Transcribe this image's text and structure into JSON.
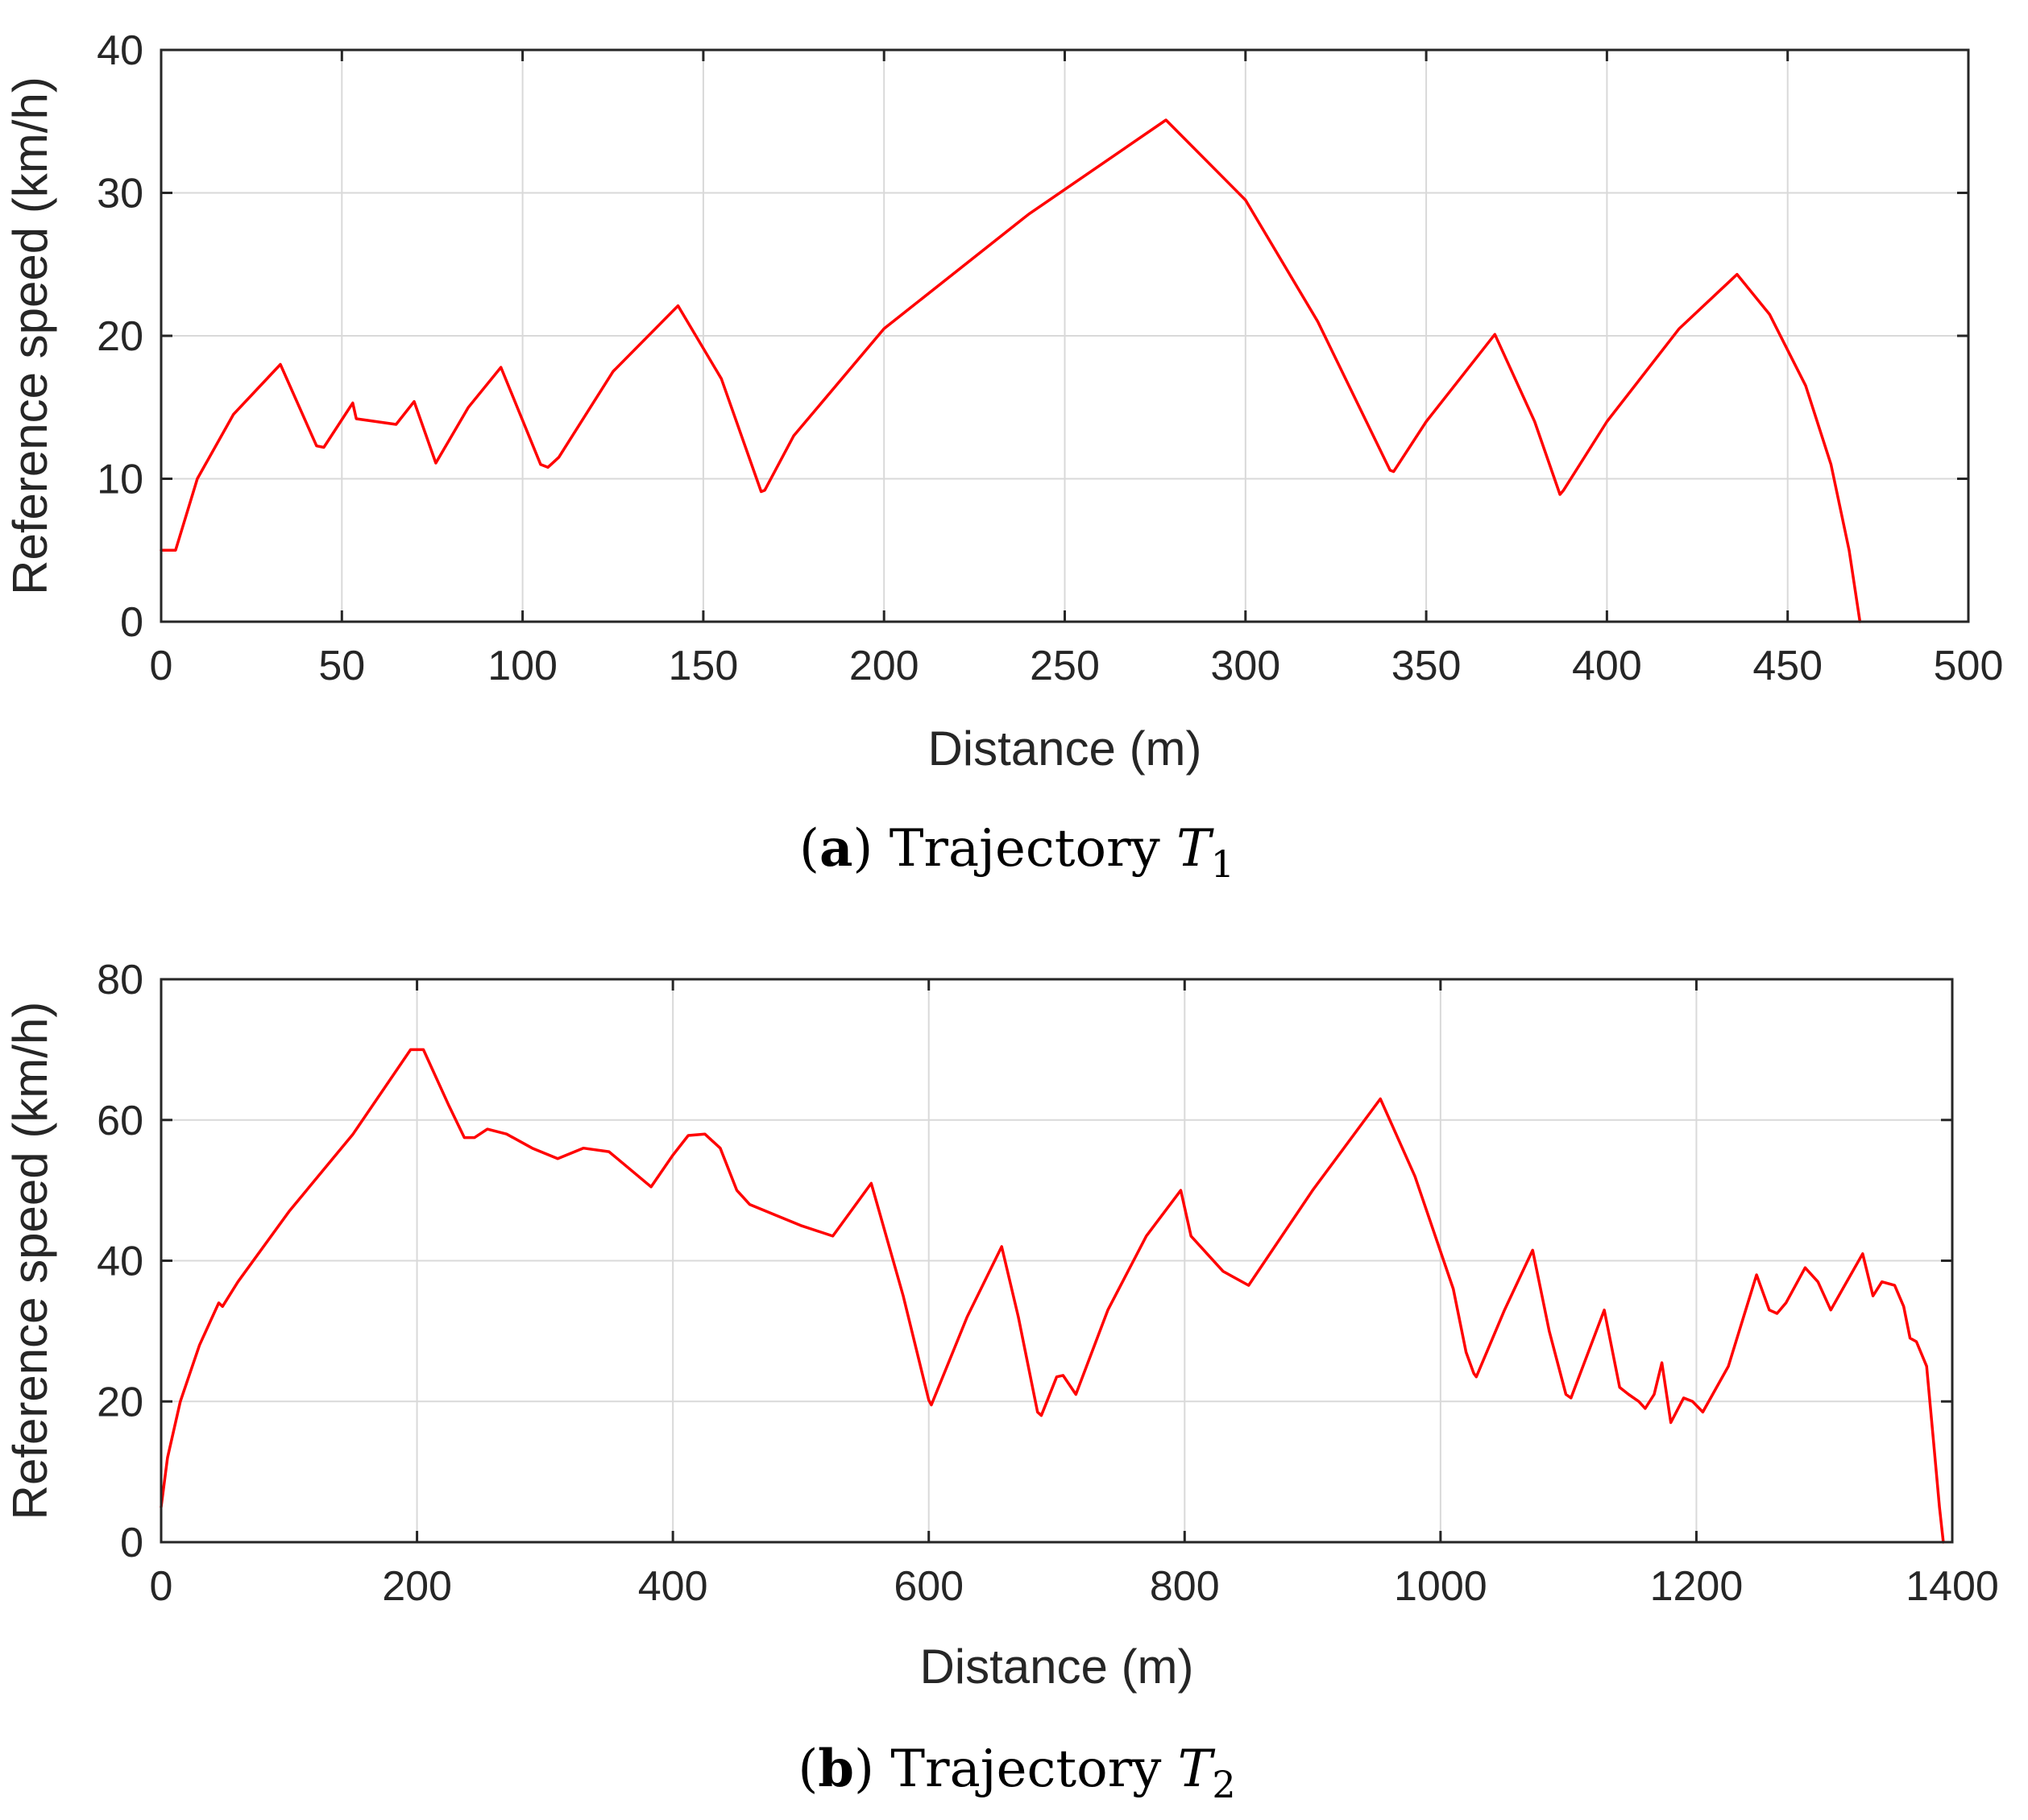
{
  "colors": {
    "line": "#ff0000",
    "grid": "#d9d9d9",
    "axis": "#262626"
  },
  "chart_data": [
    {
      "type": "line",
      "xlabel": "Distance (m)",
      "ylabel": "Reference speed (km/h)",
      "xlim": [
        0,
        500
      ],
      "ylim": [
        0,
        40
      ],
      "xticks": [
        0,
        50,
        100,
        150,
        200,
        250,
        300,
        350,
        400,
        450,
        500
      ],
      "yticks": [
        0,
        10,
        20,
        30,
        40
      ],
      "xtick_labels": [
        "0",
        "50",
        "100",
        "150",
        "200",
        "250",
        "300",
        "350",
        "400",
        "450",
        "500"
      ],
      "ytick_labels": [
        "0",
        "10",
        "20",
        "30",
        "40"
      ],
      "grid": true,
      "caption": {
        "label": "a",
        "text": "Trajectory",
        "symbol": "T",
        "subscript": "1"
      },
      "series": [
        {
          "name": "Reference speed",
          "color": "#ff0000",
          "x": [
            0,
            4,
            10,
            20,
            33,
            43,
            45,
            53,
            54,
            65,
            70,
            76,
            85,
            94,
            105,
            107,
            110,
            125,
            143,
            155,
            166,
            167,
            175,
            200,
            240,
            278,
            300,
            320,
            340,
            341,
            350,
            369,
            380,
            387,
            388,
            400,
            420,
            436,
            445,
            455,
            462,
            467,
            470
          ],
          "values": [
            5,
            5,
            10,
            14.5,
            18,
            12.3,
            12.2,
            15.3,
            14.2,
            13.8,
            15.4,
            11.1,
            15,
            17.8,
            11,
            10.8,
            11.5,
            17.5,
            22.1,
            17,
            9.1,
            9.2,
            13,
            20.5,
            28.5,
            35.1,
            29.5,
            21,
            10.6,
            10.5,
            14,
            20.1,
            14,
            8.9,
            9.2,
            14,
            20.5,
            24.3,
            21.5,
            16.5,
            11,
            5,
            0
          ]
        }
      ]
    },
    {
      "type": "line",
      "xlabel": "Distance (m)",
      "ylabel": "Reference speed (km/h)",
      "xlim": [
        0,
        1400
      ],
      "ylim": [
        0,
        80
      ],
      "xticks": [
        0,
        200,
        400,
        600,
        800,
        1000,
        1200,
        1400
      ],
      "yticks": [
        0,
        20,
        40,
        60,
        80
      ],
      "xtick_labels": [
        "0",
        "200",
        "400",
        "600",
        "800",
        "1000",
        "1200",
        "1400"
      ],
      "ytick_labels": [
        "0",
        "20",
        "40",
        "60",
        "80"
      ],
      "grid": true,
      "caption": {
        "label": "b",
        "text": "Trajectory",
        "symbol": "T",
        "subscript": "2"
      },
      "series": [
        {
          "name": "Reference speed",
          "color": "#ff0000",
          "x": [
            0,
            5,
            15,
            30,
            45,
            48,
            60,
            100,
            150,
            195,
            205,
            225,
            237,
            245,
            255,
            270,
            290,
            310,
            330,
            350,
            383,
            400,
            412,
            425,
            437,
            450,
            460,
            480,
            500,
            525,
            555,
            580,
            600,
            602,
            630,
            657,
            670,
            685,
            688,
            700,
            705,
            715,
            740,
            770,
            797,
            805,
            830,
            850,
            900,
            953,
            980,
            1010,
            1020,
            1026,
            1028,
            1050,
            1072,
            1085,
            1098,
            1102,
            1128,
            1140,
            1147,
            1155,
            1160,
            1167,
            1173,
            1180,
            1190,
            1197,
            1205,
            1225,
            1247,
            1257,
            1263,
            1270,
            1285,
            1295,
            1305,
            1330,
            1338,
            1345,
            1355,
            1362,
            1367,
            1372,
            1380,
            1385,
            1390,
            1393
          ],
          "values": [
            5,
            12,
            20,
            28,
            34,
            33.5,
            37,
            47,
            58,
            70,
            70,
            62,
            57.5,
            57.5,
            58.7,
            58,
            56,
            54.5,
            56,
            55.5,
            50.5,
            55,
            57.8,
            58,
            56,
            50,
            48,
            46.5,
            45,
            43.5,
            51,
            35,
            20.2,
            19.5,
            32,
            42,
            32,
            18.5,
            18,
            23.5,
            23.7,
            21,
            33,
            43.5,
            50,
            43.5,
            38.5,
            36.5,
            50,
            63,
            52,
            36,
            27,
            24,
            23.5,
            33,
            41.5,
            30,
            21,
            20.5,
            33,
            22,
            21,
            20,
            19,
            21,
            25.5,
            17,
            20.5,
            20,
            18.5,
            25,
            38,
            33,
            32.5,
            34,
            39,
            37,
            33,
            41,
            35,
            37,
            36.5,
            33.5,
            29,
            28.5,
            25,
            15,
            5,
            0
          ]
        }
      ]
    }
  ]
}
